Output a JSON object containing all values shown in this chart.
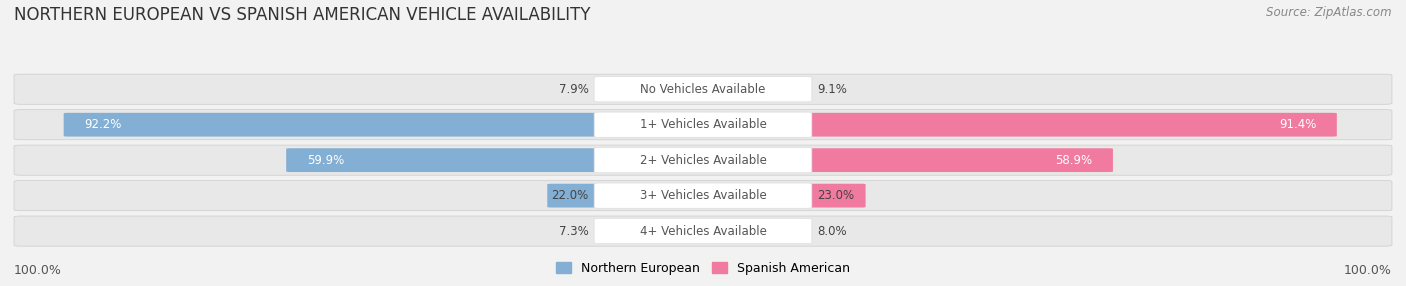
{
  "title": "NORTHERN EUROPEAN VS SPANISH AMERICAN VEHICLE AVAILABILITY",
  "source": "Source: ZipAtlas.com",
  "categories": [
    "No Vehicles Available",
    "1+ Vehicles Available",
    "2+ Vehicles Available",
    "3+ Vehicles Available",
    "4+ Vehicles Available"
  ],
  "northern_european": [
    7.9,
    92.2,
    59.9,
    22.0,
    7.3
  ],
  "spanish_american": [
    9.1,
    91.4,
    58.9,
    23.0,
    8.0
  ],
  "ne_color": "#82afd3",
  "sa_color": "#f07aa0",
  "ne_label": "Northern European",
  "sa_label": "Spanish American",
  "bg_color": "#f2f2f2",
  "row_bg_color": "#e8e8e8",
  "title_fontsize": 12,
  "source_fontsize": 8.5,
  "value_fontsize": 8.5,
  "cat_fontsize": 8.5,
  "legend_fontsize": 9,
  "axis_label_fontsize": 9,
  "max_val": 100.0
}
